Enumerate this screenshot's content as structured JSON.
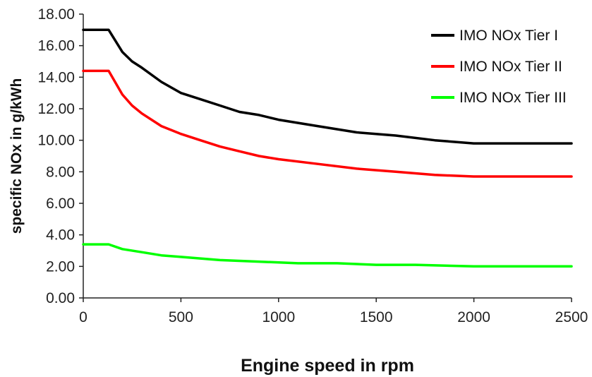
{
  "chart_data": {
    "type": "line",
    "title": "",
    "xlabel": "Engine speed in rpm",
    "ylabel": "specific NOx in g/kWh",
    "xlim": [
      0,
      2500
    ],
    "ylim": [
      0,
      18
    ],
    "x_ticks": [
      "0",
      "500",
      "1000",
      "1500",
      "2000",
      "2500"
    ],
    "y_ticks": [
      "0.00",
      "2.00",
      "4.00",
      "6.00",
      "8.00",
      "10.00",
      "12.00",
      "14.00",
      "16.00",
      "18.00"
    ],
    "grid": false,
    "legend_position": "top-right",
    "series": [
      {
        "name": "IMO NOx Tier I",
        "color": "#000000",
        "x": [
          0,
          130,
          200,
          250,
          300,
          400,
          500,
          600,
          700,
          800,
          900,
          1000,
          1200,
          1400,
          1600,
          1800,
          1999,
          2000,
          2500
        ],
        "y": [
          17.0,
          17.0,
          15.6,
          15.0,
          14.6,
          13.7,
          13.0,
          12.6,
          12.2,
          11.8,
          11.6,
          11.3,
          10.9,
          10.5,
          10.3,
          10.0,
          9.8,
          9.8,
          9.8
        ]
      },
      {
        "name": "IMO NOx Tier II",
        "color": "#ff0000",
        "x": [
          0,
          130,
          200,
          250,
          300,
          400,
          500,
          600,
          700,
          800,
          900,
          1000,
          1200,
          1400,
          1600,
          1800,
          1999,
          2000,
          2500
        ],
        "y": [
          14.4,
          14.4,
          12.9,
          12.2,
          11.7,
          10.9,
          10.4,
          10.0,
          9.6,
          9.3,
          9.0,
          8.8,
          8.5,
          8.2,
          8.0,
          7.8,
          7.7,
          7.7,
          7.7
        ]
      },
      {
        "name": "IMO NOx Tier III",
        "color": "#00ff00",
        "x": [
          0,
          130,
          200,
          300,
          400,
          500,
          700,
          900,
          1100,
          1300,
          1500,
          1700,
          1999,
          2000,
          2500
        ],
        "y": [
          3.4,
          3.4,
          3.1,
          2.9,
          2.7,
          2.6,
          2.4,
          2.3,
          2.2,
          2.2,
          2.1,
          2.1,
          2.0,
          2.0,
          2.0
        ]
      }
    ]
  }
}
